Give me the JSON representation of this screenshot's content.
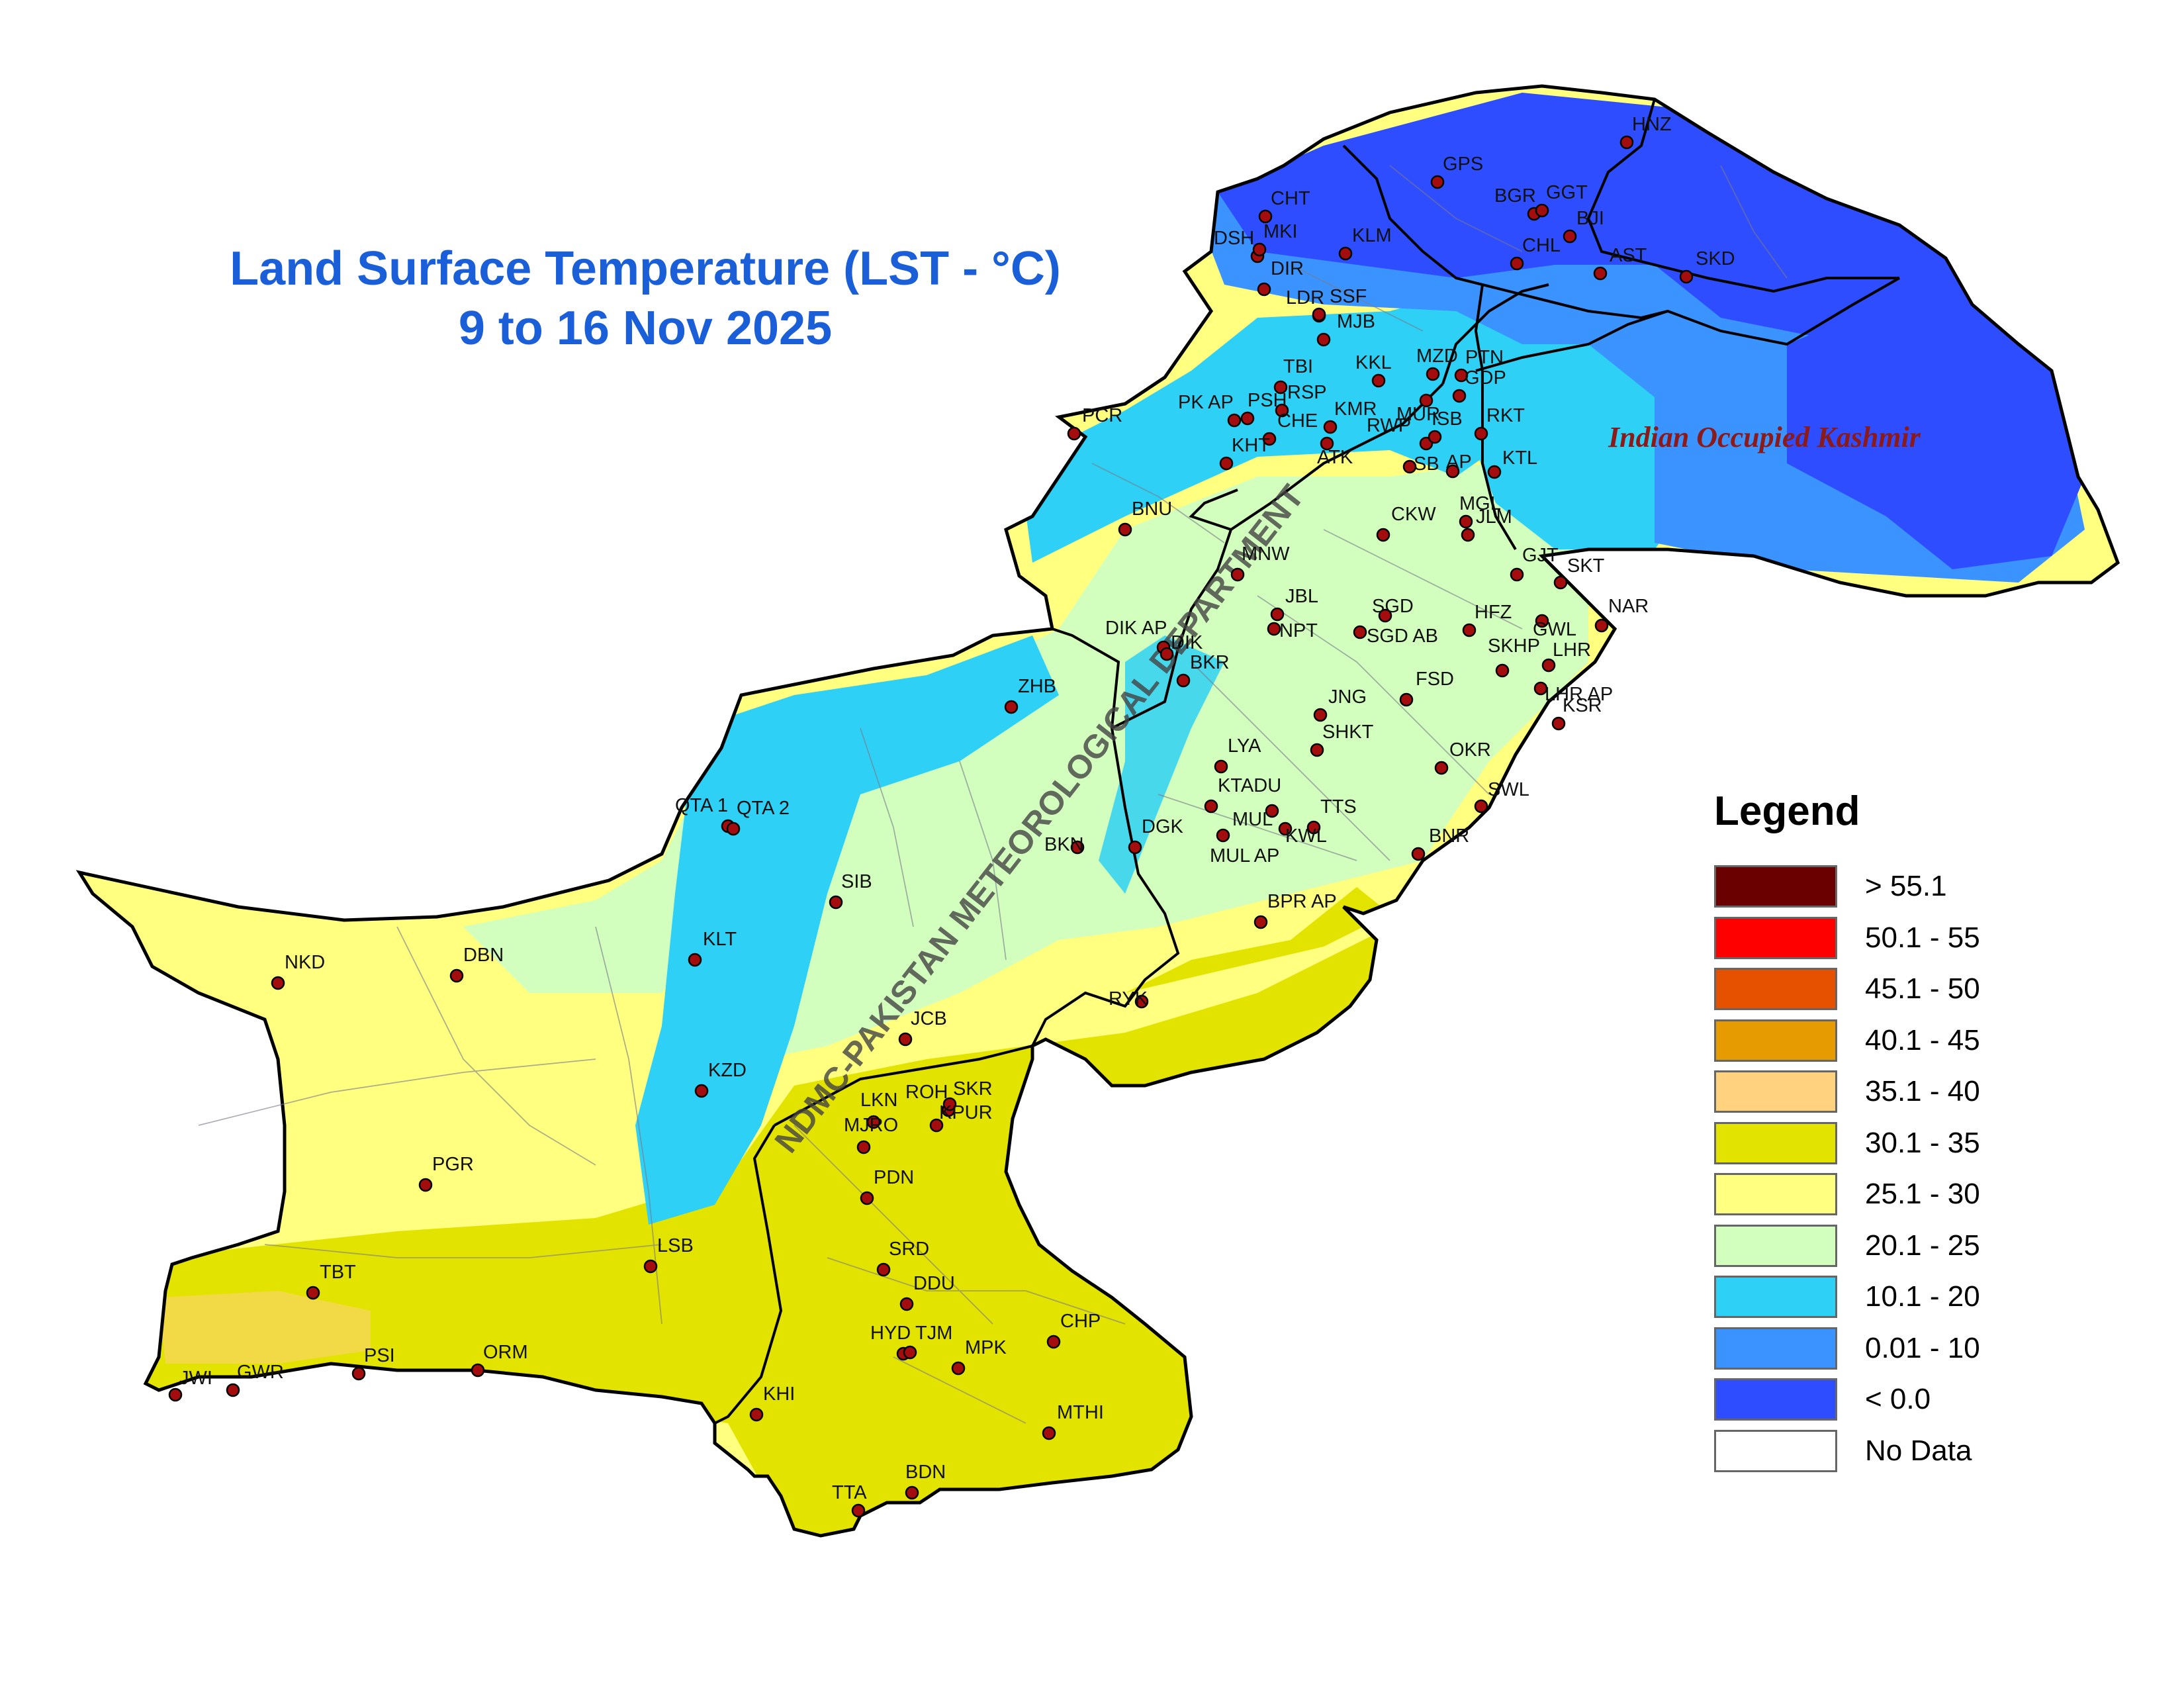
{
  "title": {
    "line1": "Land Surface Temperature (LST - °C)",
    "line2": "9 to 16 Nov 2025"
  },
  "region_label": "Indian Occupied Kashmir",
  "watermark": "NDMC-PAKISTAN METEOROLOGICAL DEPARTMENT",
  "legend": {
    "title": "Legend",
    "items": [
      {
        "label": "> 55.1",
        "color": "#6b0000"
      },
      {
        "label": "50.1 - 55",
        "color": "#ff0000"
      },
      {
        "label": "45.1 - 50",
        "color": "#e65100"
      },
      {
        "label": "40.1 - 45",
        "color": "#e69b00"
      },
      {
        "label": "35.1 - 40",
        "color": "#ffd27f"
      },
      {
        "label": "30.1 - 35",
        "color": "#e3e300"
      },
      {
        "label": "25.1 - 30",
        "color": "#ffff80"
      },
      {
        "label": "20.1 - 25",
        "color": "#d3ffbe"
      },
      {
        "label": "10.1 - 20",
        "color": "#2ed1f5"
      },
      {
        "label": "0.01 - 10",
        "color": "#3a93ff"
      },
      {
        "label": "< 0.0",
        "color": "#2e4dff"
      },
      {
        "label": "No Data",
        "color": "#ffffff"
      }
    ]
  },
  "stations": [
    "HNZ",
    "GPS",
    "BGR",
    "GGT",
    "BJI",
    "CHT",
    "DSH",
    "MKI",
    "KLM",
    "CHL",
    "AST",
    "SKD",
    "DIR",
    "LDR",
    "SSF",
    "MJB",
    "TBI",
    "RSP",
    "PSH",
    "PK AP",
    "KKL",
    "MZD",
    "PTN",
    "GDP",
    "PCR",
    "CHE",
    "KMR",
    "MUR",
    "RKT",
    "KHT",
    "RWP",
    "ISB",
    "ATK",
    "SB",
    "AP",
    "KTL",
    "MGL",
    "JLM",
    "CKW",
    "BNU",
    "MNW",
    "GJT",
    "SKT",
    "JBL",
    "SGD",
    "SGD AB",
    "HFZ",
    "GWL",
    "NAR",
    "DIK AP",
    "DIK",
    "NPT",
    "BKR",
    "SKHP",
    "LHR",
    "LHR AP",
    "FSD",
    "ZHB",
    "JNG",
    "SHKT",
    "KSR",
    "LYA",
    "OKR",
    "KTADU",
    "MUL",
    "MUL AP",
    "TTS",
    "KWL",
    "SWL",
    "QTA 1",
    "QTA 2",
    "DGK",
    "BKN",
    "BNR",
    "SIB",
    "BPR AP",
    "NKD",
    "DBN",
    "KLT",
    "RYK",
    "JCB",
    "KZD",
    "ROH",
    "SKR",
    "LKN",
    "KPUR",
    "MJRO",
    "PDN",
    "PGR",
    "TBT",
    "LSB",
    "SRD",
    "DDU",
    "CHP",
    "HYD",
    "TJM",
    "MPK",
    "JWI",
    "GWR",
    "PSI",
    "ORM",
    "KHI",
    "MTHI",
    "BDN",
    "TTA"
  ]
}
